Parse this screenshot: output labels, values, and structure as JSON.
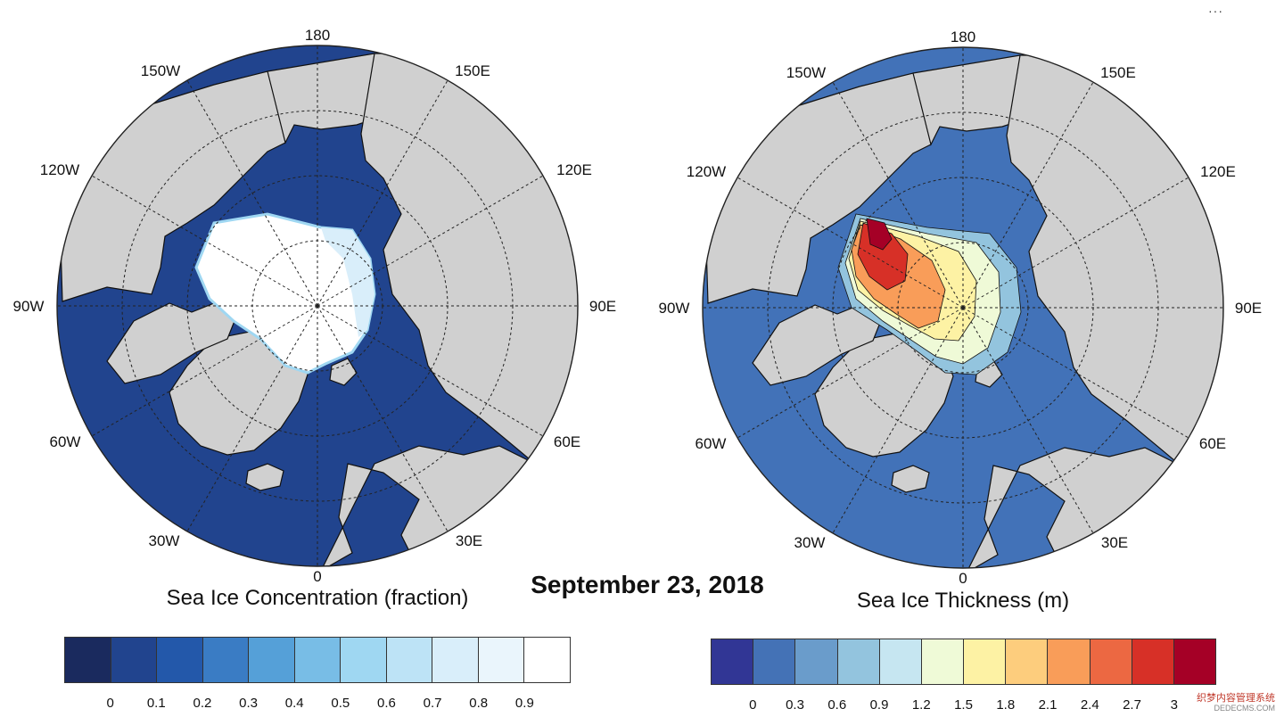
{
  "menu": {
    "more_label": "···"
  },
  "date": "September 23, 2018",
  "watermark": {
    "line1": "织梦内容管理系统",
    "line2": "DEDECMS.COM"
  },
  "colors": {
    "land": "#d0d0d0",
    "unfilled": "#ffffff",
    "coast": "#111111",
    "grid": "#222222"
  },
  "maps": [
    {
      "id": "concentration",
      "title": "Sea Ice Concentration (fraction)",
      "ocean_color": "#21448e",
      "longitude_labels": [
        "180",
        "150E",
        "120E",
        "90E",
        "60E",
        "30E",
        "0",
        "30W",
        "60W",
        "90W",
        "120W",
        "150W"
      ],
      "colorbar": {
        "colors": [
          "#1a2a5e",
          "#21448e",
          "#2358aa",
          "#3a7cc4",
          "#55a0d8",
          "#78bde6",
          "#9fd7f2",
          "#bde3f6",
          "#d9eefa",
          "#eaf5fc",
          "#ffffff"
        ],
        "ticks": [
          "0",
          "0.1",
          "0.2",
          "0.3",
          "0.4",
          "0.5",
          "0.6",
          "0.7",
          "0.8",
          "0.9"
        ]
      }
    },
    {
      "id": "thickness",
      "title": "Sea Ice Thickness (m)",
      "ocean_color": "#4272b8",
      "longitude_labels": [
        "180",
        "150E",
        "120E",
        "90E",
        "60E",
        "30E",
        "0",
        "30W",
        "60W",
        "90W",
        "120W",
        "150W"
      ],
      "colorbar": {
        "colors": [
          "#313695",
          "#4472b6",
          "#6a9ccb",
          "#93c4de",
          "#c6e6f1",
          "#effad7",
          "#fdf2a4",
          "#fdcd7d",
          "#f99d59",
          "#ec6842",
          "#d73027",
          "#a50026"
        ],
        "ticks": [
          "0",
          "0.3",
          "0.6",
          "0.9",
          "1.2",
          "1.5",
          "1.8",
          "2.1",
          "2.4",
          "2.7",
          "3"
        ]
      }
    }
  ]
}
